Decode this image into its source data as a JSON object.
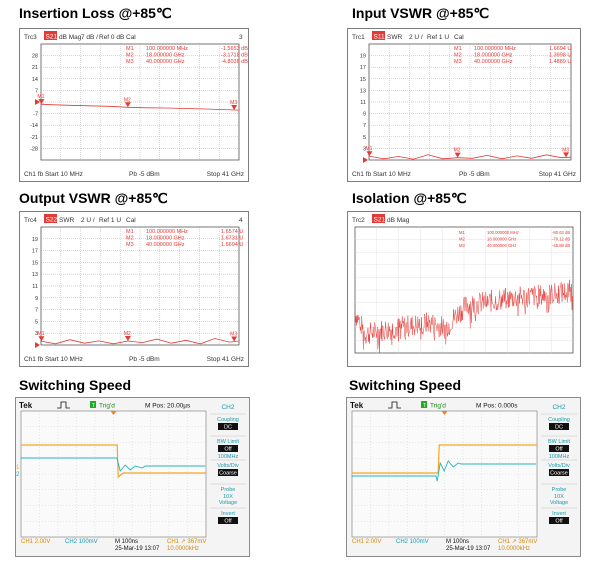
{
  "titles": {
    "insertion_loss": "Insertion Loss @+85℃",
    "input_vswr": "Input VSWR @+85℃",
    "output_vswr": "Output VSWR @+85℃",
    "isolation": "Isolation @+85℃",
    "switching_left": "Switching Speed",
    "switching_right": "Switching Speed"
  },
  "colors": {
    "trace": "#e53935",
    "orange": "#f5a623",
    "cyan": "#27b5c2",
    "green": "#22aa22",
    "grid": "#9a9a9a"
  },
  "chart_data": [
    {
      "id": "insertion_loss",
      "type": "line",
      "header": [
        "Trc3",
        "S21",
        "dB Mag",
        "7 dB /",
        "Ref 0 dB",
        "Cal",
        "3"
      ],
      "y_ticks": [
        "28",
        "21",
        "14",
        "7",
        "0",
        "-7",
        "-14",
        "-21",
        "-28"
      ],
      "ylim": [
        -35,
        35
      ],
      "x_range_mhz": [
        10,
        41000
      ],
      "footer": {
        "left": "Ch1  fb  Start  10 MHz",
        "mid": "Pb   -5 dBm",
        "right": "Stop  41 GHz"
      },
      "markers_table": [
        {
          "name": "M1",
          "freq": "100.000000",
          "unit": "MHz",
          "value": "-1.5653",
          "vunit": "dB"
        },
        {
          "name": "M2",
          "freq": "18.000000",
          "unit": "GHz",
          "value": "-3.1718",
          "vunit": "dB"
        },
        {
          "name": "M3",
          "freq": "40.000000",
          "unit": "GHz",
          "value": "-4.8038",
          "vunit": "dB"
        }
      ],
      "trace": {
        "x": [
          10,
          2000,
          6000,
          10000,
          14000,
          18000,
          22000,
          26000,
          30000,
          34000,
          38000,
          41000
        ],
        "y": [
          -1.3,
          -1.6,
          -2.0,
          -2.3,
          -2.6,
          -3.2,
          -3.5,
          -3.6,
          -3.9,
          -4.2,
          -4.6,
          -4.9
        ]
      }
    },
    {
      "id": "input_vswr",
      "type": "line",
      "header": [
        "Trc1",
        "S11",
        "SWR",
        "2 U /",
        "Ref 1 U",
        "Cal",
        ""
      ],
      "y_ticks": [
        "19",
        "17",
        "15",
        "13",
        "11",
        "9",
        "7",
        "5",
        "3"
      ],
      "ylim": [
        1,
        21
      ],
      "x_range_mhz": [
        10,
        41000
      ],
      "footer": {
        "left": "Ch1  fb  Start  10 MHz",
        "mid": "Pb   -5 dBm",
        "right": "Stop  41 GHz"
      },
      "markers_table": [
        {
          "name": "M1",
          "freq": "100.000000",
          "unit": "MHz",
          "value": "1.6694",
          "vunit": "U"
        },
        {
          "name": "M2",
          "freq": "18.000000",
          "unit": "GHz",
          "value": "1.3998",
          "vunit": "U"
        },
        {
          "name": "M3",
          "freq": "40.000000",
          "unit": "GHz",
          "value": "1.4889",
          "vunit": "U"
        }
      ],
      "trace": {
        "x": [
          10,
          3000,
          6000,
          9000,
          12000,
          15000,
          18000,
          21000,
          24000,
          27000,
          30000,
          33000,
          36000,
          39000,
          41000
        ],
        "y": [
          1.67,
          1.2,
          1.6,
          1.15,
          1.9,
          1.2,
          1.4,
          1.3,
          1.8,
          1.2,
          1.7,
          1.3,
          1.9,
          1.4,
          1.49
        ]
      }
    },
    {
      "id": "output_vswr",
      "type": "line",
      "header": [
        "Trc4",
        "S22",
        "SWR",
        "2 U /",
        "Ref 1 U",
        "Cal",
        "4"
      ],
      "y_ticks": [
        "19",
        "17",
        "15",
        "13",
        "11",
        "9",
        "7",
        "5",
        "3"
      ],
      "ylim": [
        1,
        21
      ],
      "x_range_mhz": [
        10,
        41000
      ],
      "footer": {
        "left": "Ch1  fb  Start  10 MHz",
        "mid": "Pb   -5 dBm",
        "right": "Stop  41 GHz"
      },
      "markers_table": [
        {
          "name": "M1",
          "freq": "100.000000",
          "unit": "MHz",
          "value": "1.6574",
          "vunit": "U"
        },
        {
          "name": "M2",
          "freq": "18.000000",
          "unit": "GHz",
          "value": "1.6731",
          "vunit": "U"
        },
        {
          "name": "M3",
          "freq": "40.000000",
          "unit": "GHz",
          "value": "1.6694",
          "vunit": "U"
        }
      ],
      "trace": {
        "x": [
          10,
          3000,
          6000,
          9000,
          12000,
          15000,
          18000,
          21000,
          24000,
          27000,
          30000,
          33000,
          36000,
          39000,
          41000
        ],
        "y": [
          1.66,
          1.2,
          1.9,
          1.3,
          1.7,
          1.2,
          1.67,
          1.4,
          2.0,
          1.3,
          1.8,
          1.2,
          2.1,
          1.5,
          1.67
        ]
      }
    },
    {
      "id": "isolation",
      "type": "line",
      "header": [
        "Trc2",
        "S21",
        "dB Mag",
        "",
        "",
        "",
        ""
      ],
      "y_ticks": [
        "",
        "",
        "",
        "",
        "",
        "",
        "",
        "",
        ""
      ],
      "ylim": [
        -100,
        0
      ],
      "x_range_mhz": [
        10,
        41000
      ],
      "footer": {
        "left": "",
        "mid": "",
        "right": ""
      },
      "markers_table": [
        {
          "name": "M1",
          "freq": "100.000000",
          "unit": "MHz",
          "value": "-80.63",
          "vunit": "dB"
        },
        {
          "name": "M2",
          "freq": "18.000000",
          "unit": "GHz",
          "value": "-70.12",
          "vunit": "dB"
        },
        {
          "name": "M3",
          "freq": "40.000000",
          "unit": "GHz",
          "value": "-45.88",
          "vunit": "dB"
        }
      ],
      "trace": {
        "x": [
          10,
          2000,
          5000,
          8000,
          11000,
          14000,
          17000,
          19000,
          21000,
          24000,
          27000,
          30000,
          33000,
          36000,
          39000,
          41000
        ],
        "y": [
          -68,
          -85,
          -82,
          -80,
          -78,
          -76,
          -80,
          -70,
          -62,
          -60,
          -58,
          -56,
          -55,
          -54,
          -52,
          -50
        ]
      }
    }
  ],
  "scopes": [
    {
      "id": "scope_left",
      "brand": "Tek",
      "trig_state": "Trig'd",
      "pos": "M Pos: 20.00µs",
      "channel_title": "CH2",
      "side_menu": [
        {
          "label": "Coupling",
          "value": "DC"
        },
        {
          "label": "BW Limit",
          "value": "Off",
          "sub": "100MHz"
        },
        {
          "label": "Volts/Div",
          "value": "Coarse"
        },
        {
          "label": "Probe",
          "value": "",
          "sub": "10X\nVoltage"
        },
        {
          "label": "Invert",
          "value": "Off"
        }
      ],
      "footer_ch1": "CH1  2.00V",
      "footer_ch2": "CH2  100mV",
      "footer_time": "M 100ns",
      "footer_date": "25-Mar-19 13:07",
      "footer_trig": "CH1 ↗ 367mV",
      "footer_freq": "10.0000kHz",
      "edge_fraction": 0.52,
      "ch1_marker": "1",
      "ch2_marker": "2"
    },
    {
      "id": "scope_right",
      "brand": "Tek",
      "trig_state": "Trig'd",
      "pos": "M Pos: 0.000s",
      "channel_title": "CH2",
      "side_menu": [
        {
          "label": "Coupling",
          "value": "DC"
        },
        {
          "label": "BW Limit",
          "value": "Off",
          "sub": "100MHz"
        },
        {
          "label": "Volts/Div",
          "value": "Coarse"
        },
        {
          "label": "Probe",
          "value": "",
          "sub": "10X\nVoltage"
        },
        {
          "label": "Invert",
          "value": "Off"
        }
      ],
      "footer_ch1": "CH1  2.00V",
      "footer_ch2": "CH2  100mV",
      "footer_time": "M 100ns",
      "footer_date": "25-Mar-19 13:07",
      "footer_trig": "CH1 ↗ 367mV",
      "footer_freq": "10.0000kHz",
      "edge_fraction": 0.52,
      "ch1_marker": "",
      "ch2_marker": ""
    }
  ]
}
